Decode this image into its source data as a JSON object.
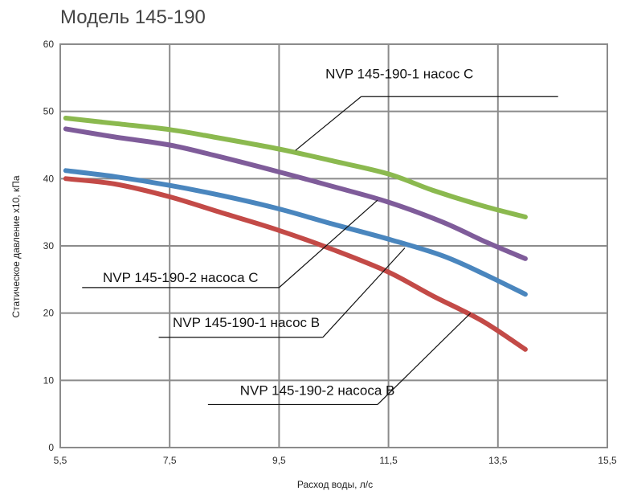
{
  "chart_data": {
    "type": "line",
    "title": "Модель 145-190",
    "xlabel": "Расход воды, л/с",
    "ylabel": "Статическое давление х10, кПа",
    "xlim": [
      5.5,
      15.5
    ],
    "ylim": [
      0,
      60
    ],
    "x_ticks": [
      "5,5",
      "7,5",
      "9,5",
      "11,5",
      "13,5",
      "15,5"
    ],
    "y_ticks": [
      "0",
      "10",
      "20",
      "30",
      "40",
      "50",
      "60"
    ],
    "grid": true,
    "series": [
      {
        "name": "NVP 145-190-1 насос C",
        "color": "#8bb94f",
        "points": [
          [
            5.6,
            49
          ],
          [
            6.5,
            48.2
          ],
          [
            7.5,
            47.3
          ],
          [
            8.3,
            46.2
          ],
          [
            9.5,
            44.4
          ],
          [
            10.5,
            42.6
          ],
          [
            11.5,
            40.7
          ],
          [
            12.3,
            38.3
          ],
          [
            13.2,
            36.0
          ],
          [
            14.0,
            34.3
          ]
        ]
      },
      {
        "name": "NVP 145-190-2 насоса C",
        "color": "#7f5c9a",
        "points": [
          [
            5.6,
            47.4
          ],
          [
            6.5,
            46.2
          ],
          [
            7.5,
            45.0
          ],
          [
            8.3,
            43.5
          ],
          [
            9.5,
            41.0
          ],
          [
            10.5,
            38.8
          ],
          [
            11.5,
            36.5
          ],
          [
            12.5,
            33.5
          ],
          [
            13.3,
            30.5
          ],
          [
            14.0,
            28.1
          ]
        ]
      },
      {
        "name": "NVP 145-190-1 насос B",
        "color": "#4a86be",
        "points": [
          [
            5.6,
            41.2
          ],
          [
            6.5,
            40.3
          ],
          [
            7.5,
            39.0
          ],
          [
            8.5,
            37.4
          ],
          [
            9.5,
            35.5
          ],
          [
            10.5,
            33.2
          ],
          [
            11.5,
            31.0
          ],
          [
            12.5,
            28.5
          ],
          [
            13.3,
            25.6
          ],
          [
            14.0,
            22.8
          ]
        ]
      },
      {
        "name": "NVP 145-190-2 насоса B",
        "color": "#c34a47",
        "points": [
          [
            5.6,
            40.0
          ],
          [
            6.5,
            39.2
          ],
          [
            7.5,
            37.3
          ],
          [
            8.5,
            34.8
          ],
          [
            9.5,
            32.3
          ],
          [
            10.5,
            29.4
          ],
          [
            11.5,
            26.1
          ],
          [
            12.3,
            22.6
          ],
          [
            13.2,
            18.9
          ],
          [
            14.0,
            14.6
          ]
        ]
      }
    ],
    "annotations": [
      {
        "label": "NVP 145-190-1 насос C",
        "series_index": 0,
        "point": [
          9.8,
          44.2
        ],
        "text_position": [
          11.7,
          54.9
        ],
        "underline": [
          11.0,
          14.6
        ],
        "leader_end": [
          11.0,
          52.2
        ]
      },
      {
        "label": "NVP 145-190-2 насоса C",
        "series_index": 1,
        "point": [
          11.3,
          36.8
        ],
        "text_position": [
          7.7,
          24.6
        ],
        "underline": [
          5.9,
          9.5
        ],
        "leader_end": [
          9.5,
          23.8
        ]
      },
      {
        "label": "NVP 145-190-1 насос B",
        "series_index": 2,
        "point": [
          11.8,
          29.7
        ],
        "text_position": [
          8.9,
          17.9
        ],
        "underline": [
          7.3,
          10.3
        ],
        "leader_end": [
          10.3,
          16.4
        ]
      },
      {
        "label": "NVP 145-190-2 насоса B",
        "series_index": 3,
        "point": [
          13.0,
          20.0
        ],
        "text_position": [
          10.2,
          7.8
        ],
        "underline": [
          8.2,
          11.3
        ],
        "leader_end": [
          11.3,
          6.4
        ]
      }
    ]
  }
}
